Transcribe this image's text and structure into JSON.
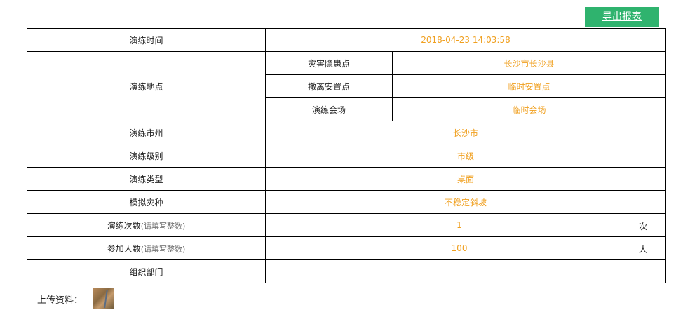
{
  "toolbar": {
    "export_label": "导出报表",
    "export_color": "#2fb36e"
  },
  "value_color": "#f0a020",
  "rows": {
    "time": {
      "label": "演练时间",
      "value": "2018-04-23 14:03:58"
    },
    "location": {
      "label": "演练地点",
      "items": [
        {
          "label": "灾害隐患点",
          "value": "长沙市长沙县"
        },
        {
          "label": "撤离安置点",
          "value": "临时安置点"
        },
        {
          "label": "演练会场",
          "value": "临时会场"
        }
      ]
    },
    "city": {
      "label": "演练市州",
      "value": "长沙市"
    },
    "level": {
      "label": "演练级别",
      "value": "市级"
    },
    "type": {
      "label": "演练类型",
      "value": "桌面"
    },
    "hazard": {
      "label": "模拟灾种",
      "value": "不稳定斜坡"
    },
    "count": {
      "label": "演练次数",
      "hint": "(请填写整数)",
      "value": "1",
      "unit": "次"
    },
    "people": {
      "label": "参加人数",
      "hint": "(请填写整数)",
      "value": "100",
      "unit": "人"
    },
    "org": {
      "label": "组织部门",
      "value": ""
    }
  },
  "upload": {
    "label": "上传资料："
  }
}
